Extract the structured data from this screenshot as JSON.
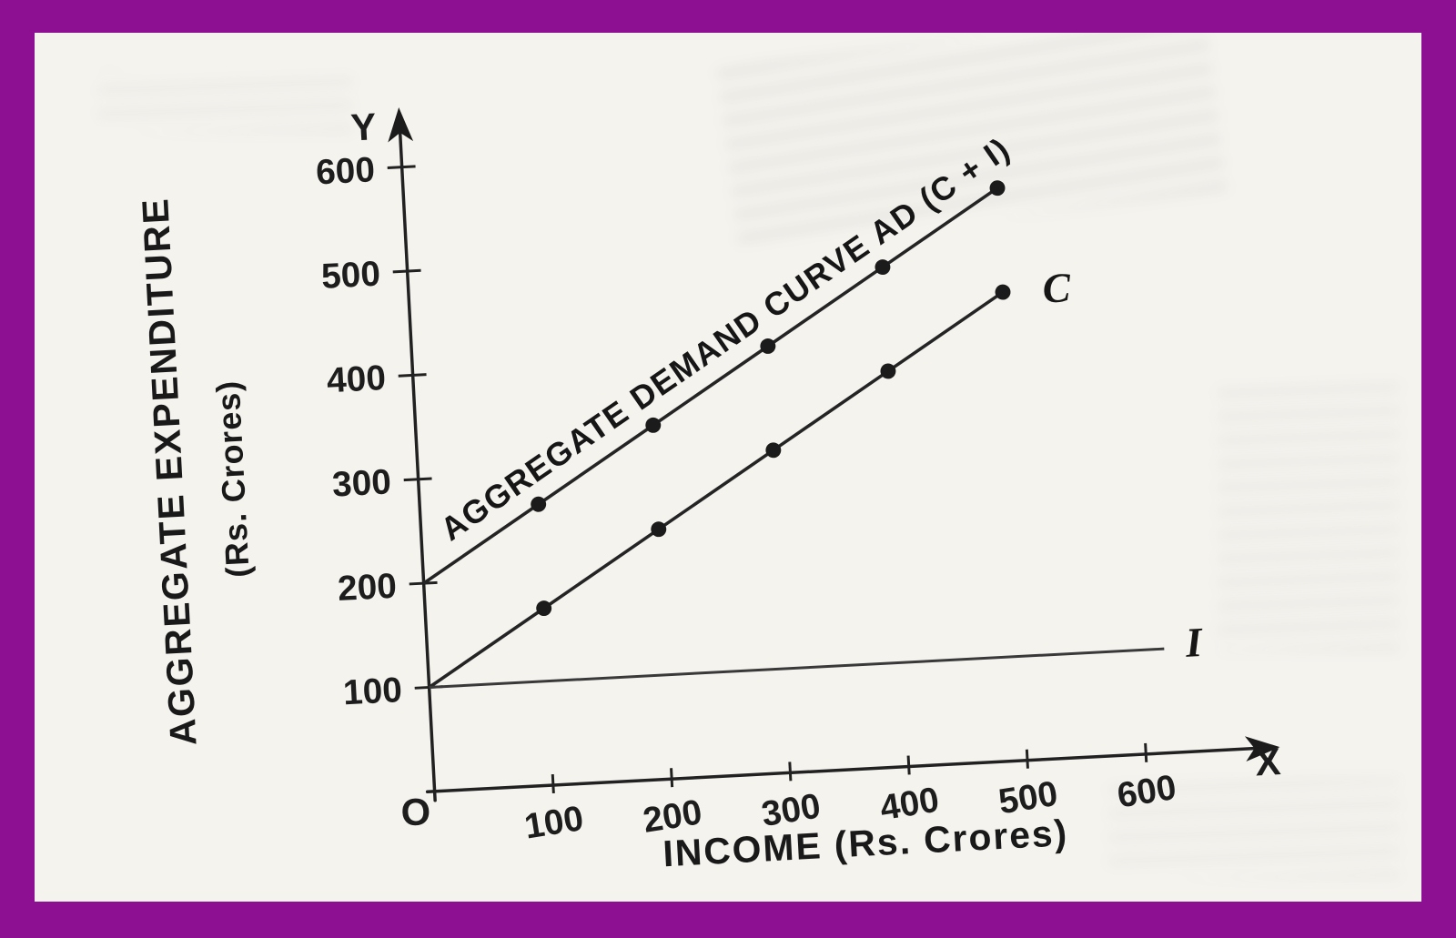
{
  "page": {
    "frame_color": "#8d0f92",
    "paper_color": "#f5f3ee",
    "ink_color": "#1f1f1f"
  },
  "chart_data": {
    "type": "line",
    "title": "",
    "xlabel": "INCOME (Rs. Crores)",
    "ylabel": "AGGREGATE EXPENDITURE",
    "ylabel_sub": "(Rs. Crores)",
    "origin_label": "O",
    "x_axis_arrow_label": "X",
    "y_axis_arrow_label": "Y",
    "x_ticks": [
      100,
      200,
      300,
      400,
      500,
      600
    ],
    "y_ticks": [
      100,
      200,
      300,
      400,
      500,
      600
    ],
    "xlim": [
      0,
      700
    ],
    "ylim": [
      0,
      660
    ],
    "grid": false,
    "series": [
      {
        "name": "AD",
        "label": "AGGREGATE DEMAND CURVE AD (C + I)",
        "x": [
          0,
          100,
          200,
          300,
          400,
          500
        ],
        "y": [
          200,
          270,
          340,
          410,
          480,
          550
        ],
        "markers": true
      },
      {
        "name": "C",
        "label": "C",
        "x": [
          0,
          100,
          200,
          300,
          400,
          500
        ],
        "y": [
          100,
          170,
          240,
          310,
          380,
          450
        ],
        "markers": true
      },
      {
        "name": "I",
        "label": "I",
        "x": [
          0,
          620
        ],
        "y": [
          100,
          100
        ],
        "markers": false
      }
    ]
  }
}
